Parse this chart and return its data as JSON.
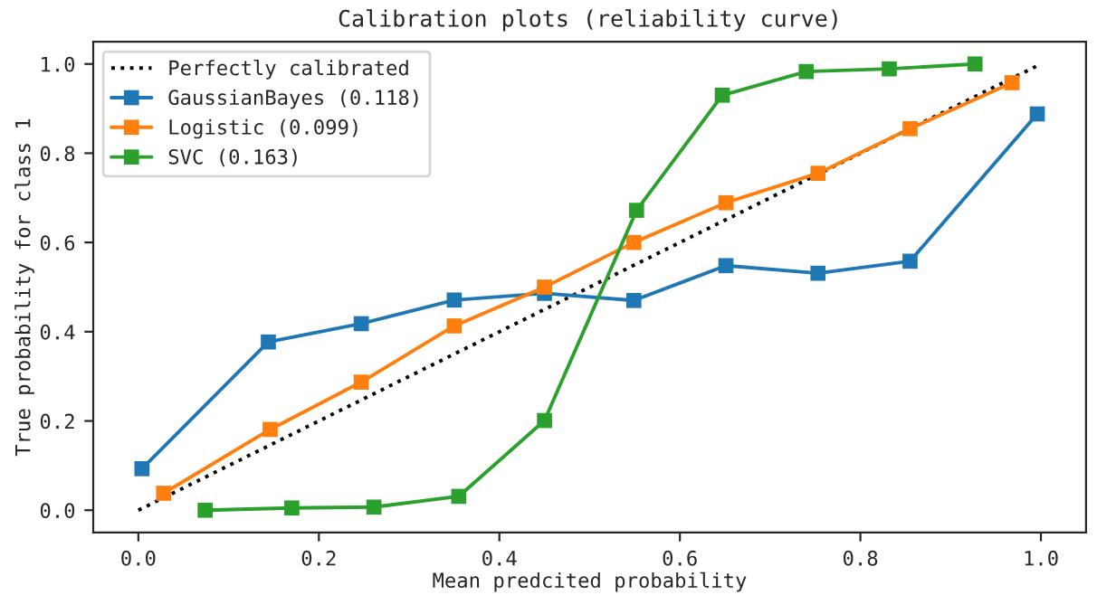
{
  "chart_data": {
    "type": "line",
    "title": "Calibration plots (reliability curve)",
    "xlabel": "Mean predcited probability",
    "ylabel": "True probability for class 1",
    "xlim": [
      -0.05,
      1.05
    ],
    "ylim": [
      -0.05,
      1.05
    ],
    "xticks": [
      {
        "value": 0,
        "label": "0.0"
      },
      0.2,
      0.4,
      0.6,
      0.8,
      {
        "value": 1,
        "label": "1.0"
      }
    ],
    "yticks": [
      {
        "value": 0,
        "label": "0.0"
      },
      0.2,
      0.4,
      0.6,
      0.8,
      {
        "value": 1,
        "label": "1.0"
      }
    ],
    "legend": "top left",
    "grid": false,
    "series": [
      {
        "name": "Perfectly calibrated",
        "color": "#000000",
        "line_style": "dotted",
        "marker": "none",
        "x": [
          0,
          1
        ],
        "values": [
          0,
          1
        ]
      },
      {
        "name": "GaussianBayes (0.118)",
        "color": "#1f77b4",
        "marker": "square",
        "line_style": "solid",
        "x": [
          0.004,
          0.144,
          0.247,
          0.35,
          0.45,
          0.549,
          0.651,
          0.753,
          0.855,
          0.996
        ],
        "values": [
          0.093,
          0.377,
          0.418,
          0.471,
          0.486,
          0.47,
          0.548,
          0.531,
          0.558,
          0.888
        ]
      },
      {
        "name": "Logistic (0.099)",
        "color": "#ff7f0e",
        "marker": "square",
        "line_style": "solid",
        "x": [
          0.028,
          0.146,
          0.247,
          0.35,
          0.45,
          0.549,
          0.651,
          0.753,
          0.855,
          0.968
        ],
        "values": [
          0.038,
          0.181,
          0.287,
          0.413,
          0.5,
          0.6,
          0.689,
          0.755,
          0.855,
          0.958
        ]
      },
      {
        "name": "SVC (0.163)",
        "color": "#2ca02c",
        "marker": "square",
        "line_style": "solid",
        "x": [
          0.074,
          0.17,
          0.261,
          0.355,
          0.45,
          0.552,
          0.647,
          0.74,
          0.832,
          0.927
        ],
        "values": [
          0.0,
          0.005,
          0.007,
          0.031,
          0.201,
          0.672,
          0.93,
          0.983,
          0.989,
          1.0
        ]
      }
    ]
  }
}
